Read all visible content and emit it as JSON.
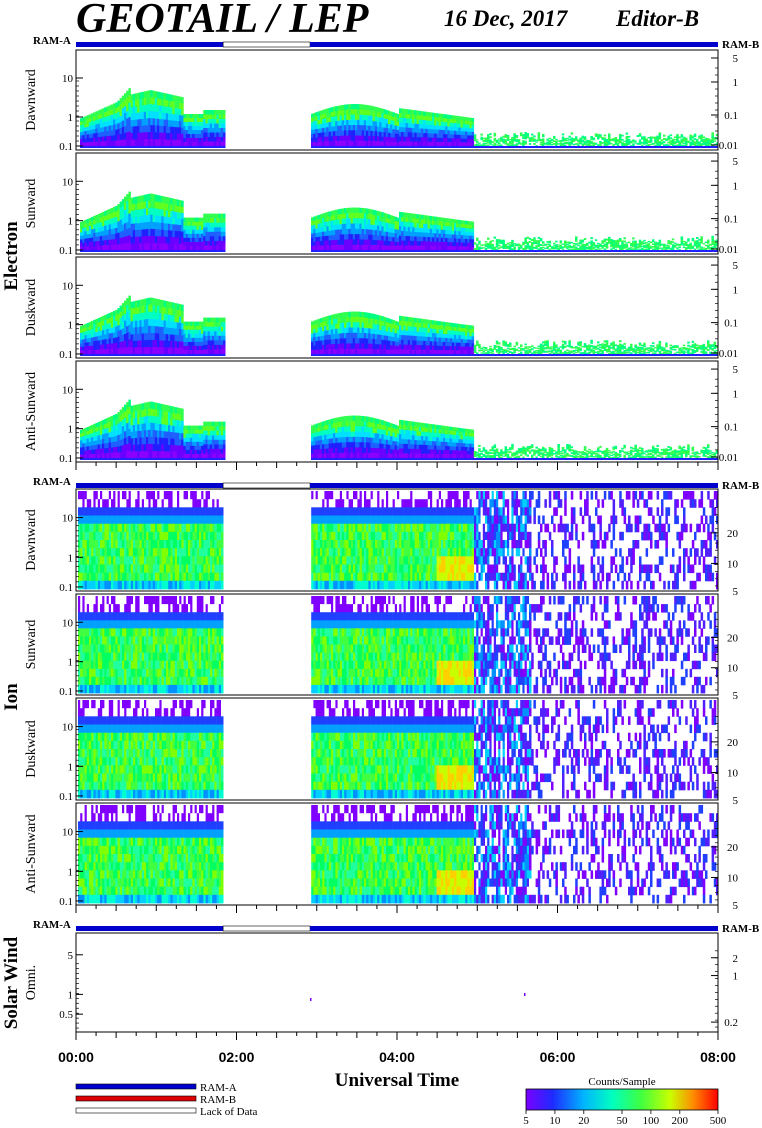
{
  "header": {
    "title": "GEOTAIL / LEP",
    "date": "16 Dec, 2017",
    "editor": "Editor-B"
  },
  "ram_labels": {
    "left": "RAM-A",
    "right": "RAM-B"
  },
  "colors": {
    "ram_a": "#0000cc",
    "ram_b": "#dd0000",
    "lack_of_data": "#ffffff",
    "frame": "#000000"
  },
  "legend": {
    "items": [
      {
        "label": "RAM-A",
        "color": "#0000cc"
      },
      {
        "label": "RAM-B",
        "color": "#dd0000"
      },
      {
        "label": "Lack of Data",
        "color": "#ffffff"
      }
    ],
    "colorbar": {
      "title": "Counts/Sample",
      "ticks": [
        "5",
        "10",
        "20",
        "50",
        "100",
        "200",
        "500"
      ]
    }
  },
  "chart_data": {
    "type": "heatmap",
    "x_axis": {
      "label": "Universal Time",
      "range": [
        "00:00",
        "08:00"
      ],
      "tick_labels": [
        "00:00",
        "02:00",
        "04:00",
        "06:00",
        "08:00"
      ]
    },
    "data_gap": {
      "start": "01:50",
      "end": "02:55"
    },
    "groups": [
      {
        "name": "Electron",
        "ram_bar": {
          "ram_a": [
            [
              "00:00",
              "01:50"
            ],
            [
              "02:55",
              "08:00"
            ]
          ],
          "gap": [
            [
              "01:50",
              "02:55"
            ]
          ]
        },
        "panels": [
          {
            "label": "Dawnward",
            "left_ticks": [
              "0.1",
              "1",
              "10"
            ],
            "right_ticks": [
              "0.01",
              "0.1",
              "1",
              "5"
            ]
          },
          {
            "label": "Sunward",
            "left_ticks": [
              "0.1",
              "1",
              "10"
            ],
            "right_ticks": [
              "0.01",
              "0.1",
              "1",
              "5"
            ]
          },
          {
            "label": "Duskward",
            "left_ticks": [
              "0.1",
              "1",
              "10"
            ],
            "right_ticks": [
              "0.01",
              "0.1",
              "1",
              "5"
            ]
          },
          {
            "label": "Anti-Sunward",
            "left_ticks": [
              "0.1",
              "1",
              "10"
            ],
            "right_ticks": [
              "0.01",
              "0.1",
              "1",
              "5"
            ]
          }
        ]
      },
      {
        "name": "Ion",
        "ram_bar": {
          "ram_a": [
            [
              "00:00",
              "01:50"
            ],
            [
              "02:55",
              "08:00"
            ]
          ],
          "gap": [
            [
              "01:50",
              "02:55"
            ]
          ]
        },
        "panels": [
          {
            "label": "Dawnward",
            "left_ticks": [
              "0.1",
              "1",
              "10"
            ],
            "right_ticks": [
              "5",
              "10",
              "20"
            ]
          },
          {
            "label": "Sunward",
            "left_ticks": [
              "0.1",
              "1",
              "10"
            ],
            "right_ticks": [
              "5",
              "10",
              "20"
            ]
          },
          {
            "label": "Duskward",
            "left_ticks": [
              "0.1",
              "1",
              "10"
            ],
            "right_ticks": [
              "5",
              "10",
              "20"
            ]
          },
          {
            "label": "Anti-Sunward",
            "left_ticks": [
              "0.1",
              "1",
              "10"
            ],
            "right_ticks": [
              "5",
              "10",
              "20"
            ]
          }
        ]
      },
      {
        "name": "Solar Wind",
        "ram_bar": {
          "ram_a": [
            [
              "00:00",
              "01:50"
            ],
            [
              "02:55",
              "08:00"
            ]
          ],
          "gap": [
            [
              "01:50",
              "02:55"
            ]
          ]
        },
        "panels": [
          {
            "label": "Omni.",
            "left_ticks": [
              "0.5",
              "1",
              "5"
            ],
            "right_ticks": [
              "0.2",
              "1",
              "2"
            ]
          }
        ]
      }
    ]
  }
}
